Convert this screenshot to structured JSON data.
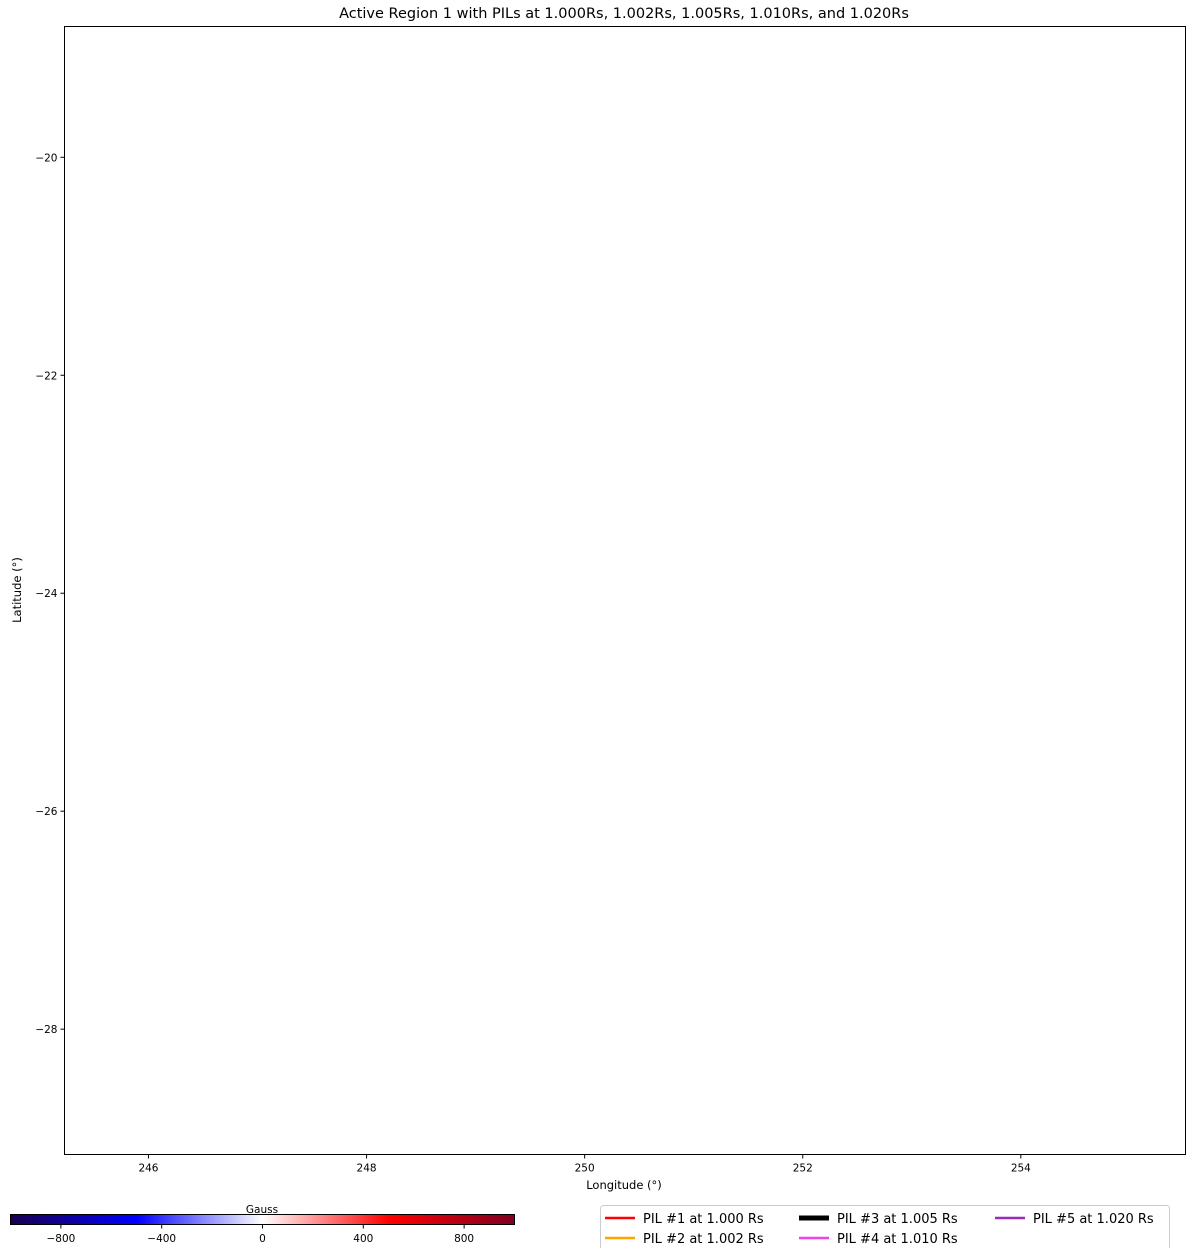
{
  "chart_data": {
    "type": "line",
    "title": "Active Region 1 with PILs at 1.000Rs, 1.002Rs, 1.005Rs, 1.010Rs, and 1.020Rs",
    "xlabel": "Longitude (°)",
    "ylabel": "Latitude (°)",
    "xlim": [
      245.23,
      255.51
    ],
    "ylim": [
      -29.15,
      -18.8
    ],
    "xticks": [
      246,
      248,
      250,
      252,
      254
    ],
    "yticks": [
      -20,
      -22,
      -24,
      -26,
      -28
    ],
    "xtick_labels": [
      "246",
      "248",
      "250",
      "252",
      "254"
    ],
    "ytick_labels": [
      "−20",
      "−22",
      "−24",
      "−26",
      "−28"
    ],
    "grid": false,
    "series": [
      {
        "name": "PIL #1 at 1.000 Rs",
        "color": "#ff0000",
        "points": []
      },
      {
        "name": "PIL #2 at 1.002 Rs",
        "color": "#ffa500",
        "points": []
      },
      {
        "name": "PIL #3 at 1.005 Rs",
        "color": "#000000",
        "points": []
      },
      {
        "name": "PIL #4 at 1.010 Rs",
        "color": "#ee44ee",
        "points": []
      },
      {
        "name": "PIL #5 at 1.020 Rs",
        "color": "#9a2ab8",
        "points": []
      }
    ],
    "legend_placement": "bottom-right",
    "colorbar": {
      "label": "Gauss",
      "range": [
        -1000,
        1000
      ],
      "ticks": [
        -800,
        -400,
        0,
        400,
        800
      ],
      "tick_labels": [
        "−800",
        "−400",
        "0",
        "400",
        "800"
      ],
      "colors": [
        "#1a0050",
        "#0000ff",
        "#ffffff",
        "#ff0000",
        "#800020"
      ]
    }
  }
}
